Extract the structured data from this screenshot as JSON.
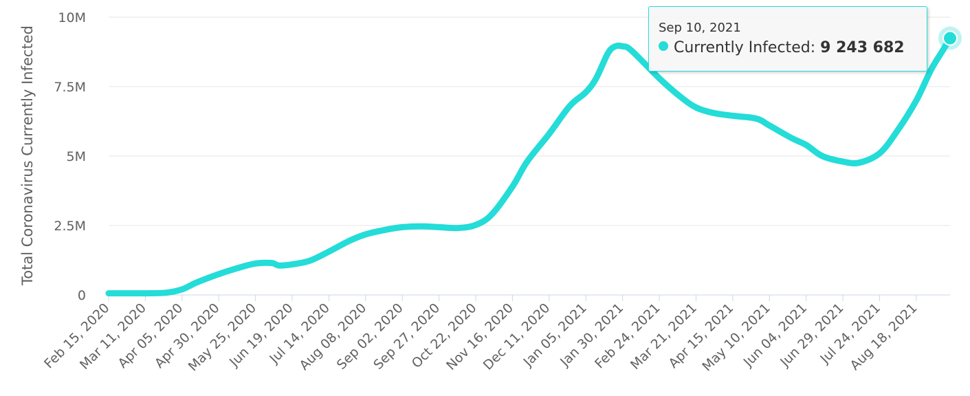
{
  "chart_data": {
    "type": "line",
    "title": "",
    "ylabel": "Total Coronavirus Currently Infected",
    "xlabel": "",
    "ylim": [
      0,
      10000000
    ],
    "yticks": [
      0,
      2500000,
      5000000,
      7500000,
      10000000
    ],
    "ytick_labels": [
      "0",
      "2.5M",
      "5M",
      "7.5M",
      "10M"
    ],
    "x_start": "2020-02-15",
    "x_end": "2021-09-10",
    "xtick_labels": [
      "Feb 15, 2020",
      "Mar 11, 2020",
      "Apr 05, 2020",
      "Apr 30, 2020",
      "May 25, 2020",
      "Jun 19, 2020",
      "Jul 14, 2020",
      "Aug 08, 2020",
      "Sep 02, 2020",
      "Sep 27, 2020",
      "Oct 22, 2020",
      "Nov 16, 2020",
      "Dec 11, 2020",
      "Jan 05, 2021",
      "Jan 30, 2021",
      "Feb 24, 2021",
      "Mar 21, 2021",
      "Apr 15, 2021",
      "May 10, 2021",
      "Jun 04, 2021",
      "Jun 29, 2021",
      "Jul 24, 2021",
      "Aug 18, 2021"
    ],
    "grid": true,
    "series": [
      {
        "name": "Currently Infected",
        "color": "#24dcd8",
        "points": [
          [
            "2020-02-15",
            60000
          ],
          [
            "2020-03-11",
            60000
          ],
          [
            "2020-03-25",
            80000
          ],
          [
            "2020-04-05",
            200000
          ],
          [
            "2020-04-15",
            450000
          ],
          [
            "2020-04-30",
            750000
          ],
          [
            "2020-05-15",
            1000000
          ],
          [
            "2020-05-25",
            1130000
          ],
          [
            "2020-06-05",
            1150000
          ],
          [
            "2020-06-10",
            1060000
          ],
          [
            "2020-06-19",
            1100000
          ],
          [
            "2020-07-01",
            1230000
          ],
          [
            "2020-07-14",
            1560000
          ],
          [
            "2020-07-28",
            1950000
          ],
          [
            "2020-08-08",
            2180000
          ],
          [
            "2020-08-20",
            2330000
          ],
          [
            "2020-09-02",
            2440000
          ],
          [
            "2020-09-15",
            2470000
          ],
          [
            "2020-09-27",
            2440000
          ],
          [
            "2020-10-10",
            2410000
          ],
          [
            "2020-10-22",
            2520000
          ],
          [
            "2020-11-02",
            2900000
          ],
          [
            "2020-11-16",
            3900000
          ],
          [
            "2020-11-26",
            4800000
          ],
          [
            "2020-12-11",
            5800000
          ],
          [
            "2020-12-25",
            6800000
          ],
          [
            "2021-01-05",
            7300000
          ],
          [
            "2021-01-12",
            7800000
          ],
          [
            "2021-01-20",
            8700000
          ],
          [
            "2021-01-25",
            8950000
          ],
          [
            "2021-01-30",
            8950000
          ],
          [
            "2021-02-05",
            8800000
          ],
          [
            "2021-02-24",
            7800000
          ],
          [
            "2021-03-10",
            7150000
          ],
          [
            "2021-03-21",
            6750000
          ],
          [
            "2021-04-02",
            6550000
          ],
          [
            "2021-04-15",
            6450000
          ],
          [
            "2021-05-01",
            6350000
          ],
          [
            "2021-05-10",
            6100000
          ],
          [
            "2021-05-25",
            5650000
          ],
          [
            "2021-06-04",
            5400000
          ],
          [
            "2021-06-15",
            5000000
          ],
          [
            "2021-06-29",
            4800000
          ],
          [
            "2021-07-10",
            4760000
          ],
          [
            "2021-07-24",
            5100000
          ],
          [
            "2021-08-05",
            5900000
          ],
          [
            "2021-08-18",
            7000000
          ],
          [
            "2021-08-28",
            8100000
          ],
          [
            "2021-09-05",
            8800000
          ],
          [
            "2021-09-10",
            9243682
          ]
        ]
      }
    ],
    "highlight": {
      "date": "2021-09-10",
      "value": 9243682
    }
  },
  "tooltip": {
    "date": "Sep 10, 2021",
    "label": "Currently Infected:",
    "value": "9 243 682",
    "color": "#24dcd8"
  }
}
